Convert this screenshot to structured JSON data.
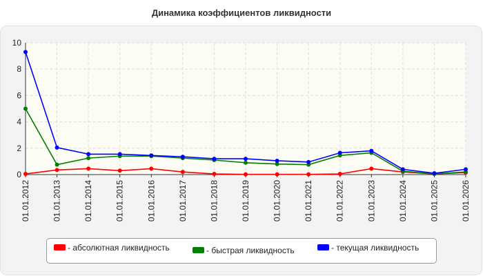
{
  "chart_data": {
    "type": "line",
    "title": "Динамика коэффициентов ликвидности",
    "xlabel": "",
    "ylabel": "",
    "categories": [
      "01.01.2012",
      "01.01.2013",
      "01.01.2014",
      "01.01.2015",
      "01.01.2016",
      "01.01.2017",
      "01.01.2018",
      "01.01.2019",
      "01.01.2020",
      "01.01.2021",
      "01.01.2022",
      "01.01.2023",
      "01.01.2024",
      "01.01.2025",
      "01.01.2026"
    ],
    "ylim": [
      0,
      10
    ],
    "yticks": [
      "0",
      "2",
      "4",
      "6",
      "8",
      "10"
    ],
    "grid": true,
    "legend_position": "bottom",
    "series": [
      {
        "name": "- абсолютная ликвидность",
        "color": "#ff0000",
        "values": [
          0.05,
          0.35,
          0.45,
          0.3,
          0.45,
          0.2,
          0.05,
          0.02,
          0.02,
          0.02,
          0.05,
          0.45,
          0.2,
          0.05,
          0.15
        ]
      },
      {
        "name": "- быстрая ликвидность",
        "color": "#008000",
        "values": [
          5.0,
          0.75,
          1.25,
          1.4,
          1.4,
          1.25,
          1.1,
          0.9,
          0.8,
          0.75,
          1.45,
          1.65,
          0.25,
          0.05,
          0.2
        ]
      },
      {
        "name": "- текущая ликвидность",
        "color": "#0000ff",
        "values": [
          9.3,
          2.05,
          1.55,
          1.55,
          1.45,
          1.35,
          1.2,
          1.2,
          1.05,
          0.95,
          1.65,
          1.8,
          0.4,
          0.1,
          0.4
        ]
      }
    ]
  }
}
